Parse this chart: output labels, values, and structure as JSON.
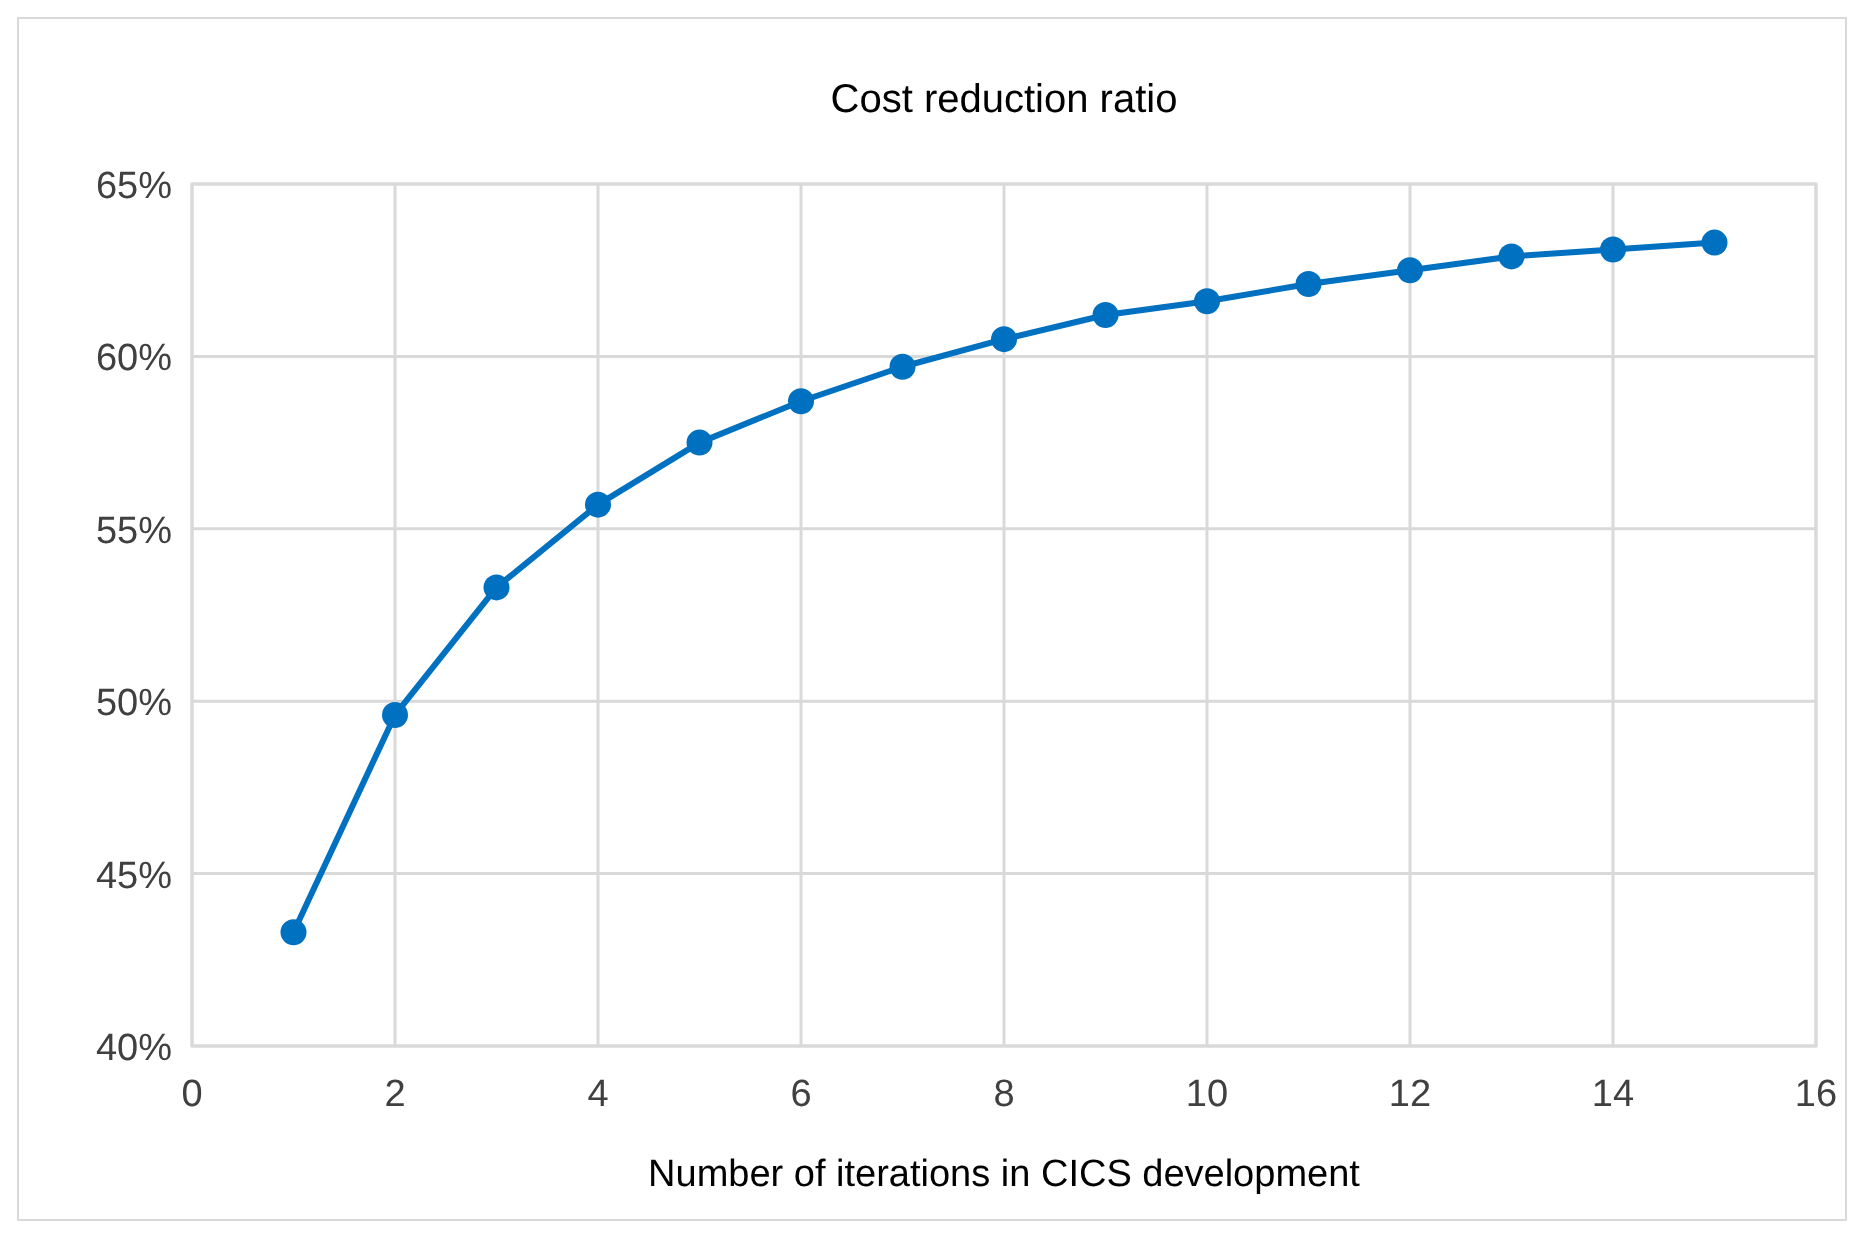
{
  "chart_data": {
    "type": "line",
    "title": "Cost reduction ratio",
    "xlabel": "Number of iterations in CICS development",
    "x": [
      1,
      2,
      3,
      4,
      5,
      6,
      7,
      8,
      9,
      10,
      11,
      12,
      13,
      14,
      15
    ],
    "series": [
      {
        "color": "#0070c0",
        "values": [
          43.3,
          49.6,
          53.3,
          55.7,
          57.5,
          58.7,
          59.7,
          60.5,
          61.2,
          61.6,
          62.1,
          62.5,
          62.9,
          63.1,
          63.3
        ]
      }
    ],
    "xlim": [
      0,
      16
    ],
    "xticks": [
      0,
      2,
      4,
      6,
      8,
      10,
      12,
      14,
      16
    ],
    "ylim": [
      40,
      65
    ],
    "yticks": [
      {
        "value": 40,
        "label": "40%"
      },
      {
        "value": 45,
        "label": "45%"
      },
      {
        "value": 50,
        "label": "50%"
      },
      {
        "value": 55,
        "label": "55%"
      },
      {
        "value": 60,
        "label": "60%"
      },
      {
        "value": 65,
        "label": "65%"
      }
    ],
    "grid": true,
    "marker": "circle",
    "line_style": "solid"
  }
}
